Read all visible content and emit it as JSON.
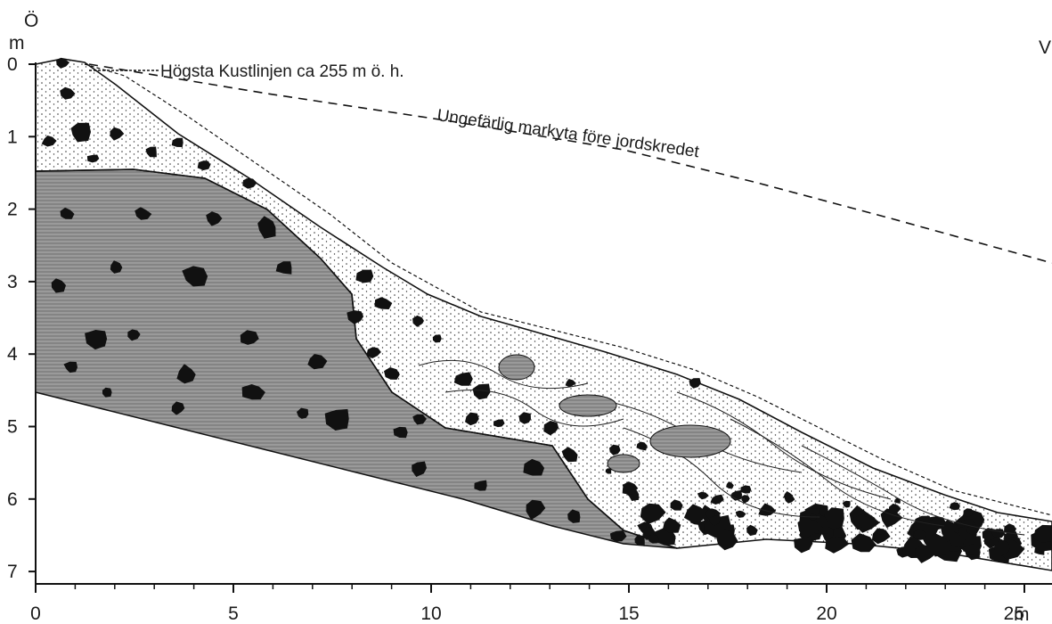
{
  "axes": {
    "y_unit": "m",
    "x_unit": "m",
    "x_ticks": [
      {
        "value": 0,
        "label": "0"
      },
      {
        "value": 5,
        "label": "5"
      },
      {
        "value": 10,
        "label": "10"
      },
      {
        "value": 15,
        "label": "15"
      },
      {
        "value": 20,
        "label": "20"
      },
      {
        "value": 25,
        "label": "25"
      }
    ],
    "y_ticks": [
      {
        "value": 0,
        "label": "0"
      },
      {
        "value": 1,
        "label": "1"
      },
      {
        "value": 2,
        "label": "2"
      },
      {
        "value": 3,
        "label": "3"
      },
      {
        "value": 4,
        "label": "4"
      },
      {
        "value": 5,
        "label": "5"
      },
      {
        "value": 6,
        "label": "6"
      },
      {
        "value": 7,
        "label": "7"
      }
    ],
    "x_range": [
      0,
      26
    ],
    "y_range": [
      0,
      7.5
    ]
  },
  "orientation": {
    "left": "Ö",
    "right": "V"
  },
  "annotations": {
    "coastline": "Högsta Kustlinjen ca 255 m ö. h.",
    "pre_slide_surface": "Ungefärlig markyta före jordskredet"
  },
  "colors": {
    "ink": "#111111",
    "clay_fill": "#8f8f8f",
    "soil_fill": "#ffffff",
    "background": "#ffffff"
  }
}
